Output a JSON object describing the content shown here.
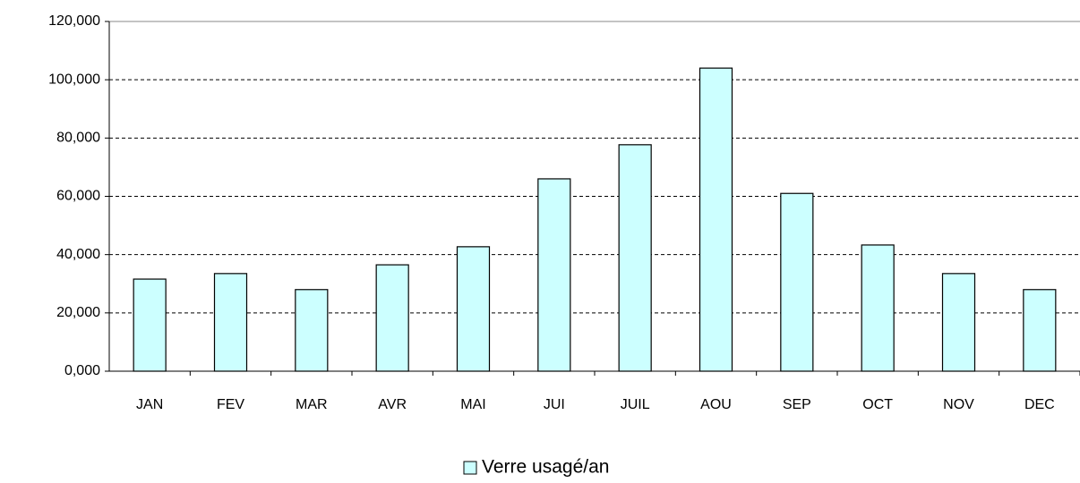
{
  "chart_data": {
    "type": "bar",
    "categories": [
      "JAN",
      "FEV",
      "MAR",
      "AVR",
      "MAI",
      "JUI",
      "JUIL",
      "AOU",
      "SEP",
      "OCT",
      "NOV",
      "DEC"
    ],
    "series": [
      {
        "name": "Verre usagé/an",
        "color": "#ccffff",
        "values": [
          31600,
          33500,
          28000,
          36500,
          42700,
          66000,
          77700,
          104000,
          61000,
          43300,
          33500,
          28000
        ]
      }
    ],
    "ylim": [
      0,
      120000
    ],
    "yticks": [
      {
        "value": 0,
        "label": "0,000"
      },
      {
        "value": 20000,
        "label": "20,000"
      },
      {
        "value": 40000,
        "label": "40,000"
      },
      {
        "value": 60000,
        "label": "60,000"
      },
      {
        "value": 80000,
        "label": "80,000"
      },
      {
        "value": 100000,
        "label": "100,000"
      },
      {
        "value": 120000,
        "label": "120,000"
      }
    ],
    "grid": true,
    "legend": "bottom"
  }
}
